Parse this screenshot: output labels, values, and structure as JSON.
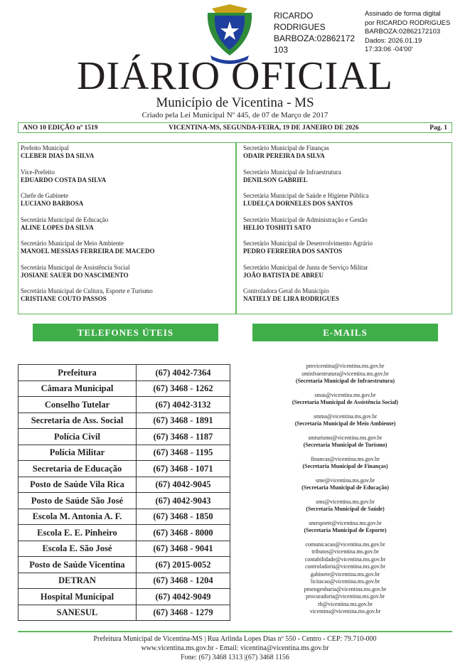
{
  "signature": {
    "name_lines": [
      "RICARDO",
      "RODRIGUES",
      "BARBOZA:02862172",
      "103"
    ],
    "details": [
      "Assinado de forma digital",
      "por RICARDO RODRIGUES",
      "BARBOZA:02862172103",
      "Dados: 2026.01.19",
      "17:33:06 -04'00'"
    ]
  },
  "masthead": {
    "title": "DIÁRIO OFICIAL",
    "subtitle": "Município de Vicentina - MS",
    "created": "Criado pela Lei Municipal Nº 445, de 07 de Março de 2017"
  },
  "edition_bar": {
    "edition": "ANO 10 EDIÇÃO nº 1519",
    "date": "VICENTINA-MS, SEGUNDA-FEIRA, 19 DE JANEIRO DE 2026",
    "page": "Pag. 1"
  },
  "officials_left": [
    {
      "role": "Prefeito Municipal",
      "name": "CLEBER DIAS DA SILVA"
    },
    {
      "role": "Vice-Prefeito",
      "name": "EDUARDO COSTA DA SILVA"
    },
    {
      "role": "Chefe de Gabinete",
      "name": "LUCIANO BARBOSA"
    },
    {
      "role": "Secretária Municipal de Educação",
      "name": "ALINE LOPES DA SILVA"
    },
    {
      "role": "Secretário Municipal de Meio Ambiente",
      "name": "MANOEL MESSIAS FERREIRA DE MACEDO"
    },
    {
      "role": "Secretária Municipal de Assistência Social",
      "name": "JOSIANE SAUER DO NASCIMENTO"
    },
    {
      "role": "Secretária Municipal de Cultura, Esporte e Turismo",
      "name": "CRISTIANE COUTO PASSOS"
    }
  ],
  "officials_right": [
    {
      "role": "Secretário Municipal de Finanças",
      "name": "ODAIR PEREIRA DA SILVA"
    },
    {
      "role": "Secretário Municipal de Infraestrutura",
      "name": "DENILSON GABRIEL"
    },
    {
      "role": "Secretária Municipal de Saúde e Higiene Pública",
      "name": "LUDELÇA DORNELES DOS SANTOS"
    },
    {
      "role": "Secretário Municipal de Administração e Gestão",
      "name": "HELIO TOSHITI SATO"
    },
    {
      "role": "Secretário Municipal de Desenvolvimento Agrário",
      "name": "PEDRO FERREIRA DOS SANTOS"
    },
    {
      "role": "Secretário Municipal de Junta de Serviço Militar",
      "name": "JOÃO BATISTA DE ABREU"
    },
    {
      "role": "Controladora Geral do Município",
      "name": "NATIELY DE LIRA RODRIGUES"
    }
  ],
  "sections": {
    "phones": "TELEFONES ÚTEIS",
    "emails": "E-MAILS"
  },
  "phones": [
    [
      "Prefeitura",
      "(67) 4042-7364"
    ],
    [
      "Câmara Municipal",
      "(67) 3468 - 1262"
    ],
    [
      "Conselho Tutelar",
      "(67) 4042-3132"
    ],
    [
      "Secretaria de Ass. Social",
      "(67) 3468 - 1891"
    ],
    [
      "Polícia Civil",
      "(67) 3468 - 1187"
    ],
    [
      "Polícia Militar",
      "(67) 3468 - 1195"
    ],
    [
      "Secretaria de Educação",
      "(67) 3468 - 1071"
    ],
    [
      "Posto de Saúde Vila Rica",
      "(67) 4042-9045"
    ],
    [
      "Posto de Saúde São José",
      "(67) 4042-9043"
    ],
    [
      "Escola M. Antonia A. F.",
      "(67) 3468 - 1850"
    ],
    [
      "Escola E. E. Pinheiro",
      "(67) 3468 - 8000"
    ],
    [
      "Escola E. São José",
      "(67) 3468 - 9041"
    ],
    [
      "Posto de Saúde Vicentina",
      "(67) 2015-0052"
    ],
    [
      "DETRAN",
      "(67) 3468 - 1204"
    ],
    [
      "Hospital Municipal",
      "(67) 4042-9049"
    ],
    [
      "SANESUL",
      "(67) 3468 - 1279"
    ]
  ],
  "email_groups": [
    {
      "emails": [
        "pmvicentina@vicentina.ms.gov.br",
        "sminfraestrutura@vicentina.ms.gov.br"
      ],
      "label": "(Secretaria Municipal de Infraestrutura)"
    },
    {
      "emails": [
        "smas@vicentina.ms.gov.br"
      ],
      "label": "(Secretaria Municipal de Assistência Social)"
    },
    {
      "emails": [
        "smma@vicentina.ms.gov.br"
      ],
      "label": "(Secretaria Municipal de Meio Ambiente)"
    },
    {
      "emails": [
        "smturismo@vicentina.ms.gov.br"
      ],
      "label": "(Secretaria Municipal de Turismo)"
    },
    {
      "emails": [
        "financas@vicentina.ms.gov.br"
      ],
      "label": "(Secretaria Municipal de Finanças)"
    },
    {
      "emails": [
        "sme@vicentina.ms.gov.br"
      ],
      "label": "(Secretaria Municipal de Educação)"
    },
    {
      "emails": [
        "sms@vicentina.ms.gov.br"
      ],
      "label": "(Secretaria Municipal de Saúde)"
    },
    {
      "emails": [
        "smesporte@vicentina.ms.gov.br"
      ],
      "label": "(Secretaria Municipal de Esporte)"
    },
    {
      "emails": [
        "comunicacao@vicentina.ms.gov.br",
        "tributos@vicentina.ms.gov.br",
        "contabilidade@vicentina.ms.gov.br",
        "controladoria@vicentina.ms.gov.br",
        "gabinete@vicentina.ms.gov.br",
        "licitacao@vicentina.ms.gov.br",
        "pmengenharia@vicentina.ms.gov.br",
        "procuradoria@vicentina.ms.gov.br",
        "rh@vicentina.ms.gov.br",
        "vicentina@vicentina.ms.gov.br"
      ],
      "label": ""
    }
  ],
  "footer": {
    "line1": "Prefeitura Municipal de Vicentina-MS | Rua Arlinda Lopes Dias nº 550 - Centro - CEP: 79.710-000",
    "line2": "www.vicentina.ms.gov.br - Email: vicentina@vicentina.ms.gov.br",
    "line3": "Fone: (67) 3468 1313 |(67) 3468 1156"
  },
  "colors": {
    "accent": "#3fae49",
    "border": "#5cb85c"
  }
}
